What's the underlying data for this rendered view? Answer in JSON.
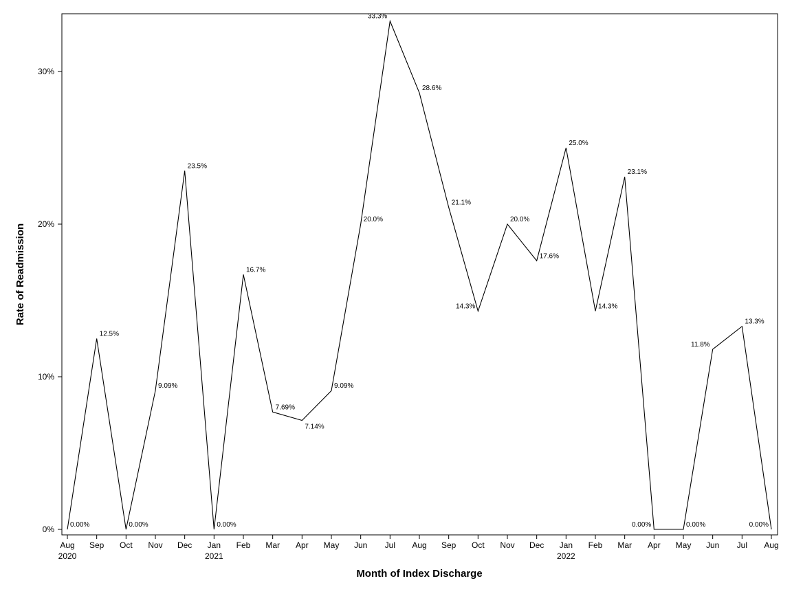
{
  "chart_data": {
    "type": "line",
    "title": "",
    "xlabel": "Month of Index Discharge",
    "ylabel": "Rate of Readmission",
    "ylim": [
      0,
      0.337
    ],
    "yticks": [
      {
        "value": 0,
        "label": "0%"
      },
      {
        "value": 0.1,
        "label": "10%"
      },
      {
        "value": 0.2,
        "label": "20%"
      },
      {
        "value": 0.3,
        "label": "30%"
      }
    ],
    "grid": false,
    "legend": "none",
    "line_color": "#000000",
    "series": [
      {
        "points": [
          {
            "month": "Aug",
            "year": "2020",
            "value": 0.0,
            "label": "0.00%",
            "label_pos": "right"
          },
          {
            "month": "Sep",
            "year": "",
            "value": 0.125,
            "label": "12.5%",
            "label_pos": "right"
          },
          {
            "month": "Oct",
            "year": "",
            "value": 0.0,
            "label": "0.00%",
            "label_pos": "right"
          },
          {
            "month": "Nov",
            "year": "",
            "value": 0.0909,
            "label": "9.09%",
            "label_pos": "right"
          },
          {
            "month": "Dec",
            "year": "",
            "value": 0.235,
            "label": "23.5%",
            "label_pos": "right"
          },
          {
            "month": "Jan",
            "year": "2021",
            "value": 0.0,
            "label": "0.00%",
            "label_pos": "right"
          },
          {
            "month": "Feb",
            "year": "",
            "value": 0.167,
            "label": "16.7%",
            "label_pos": "right"
          },
          {
            "month": "Mar",
            "year": "",
            "value": 0.0769,
            "label": "7.69%",
            "label_pos": "right"
          },
          {
            "month": "Apr",
            "year": "",
            "value": 0.0714,
            "label": "7.14%",
            "label_pos": "below"
          },
          {
            "month": "May",
            "year": "",
            "value": 0.0909,
            "label": "9.09%",
            "label_pos": "right"
          },
          {
            "month": "Jun",
            "year": "",
            "value": 0.2,
            "label": "20.0%",
            "label_pos": "right"
          },
          {
            "month": "Jul",
            "year": "",
            "value": 0.333,
            "label": "33.3%",
            "label_pos": "left"
          },
          {
            "month": "Aug",
            "year": "",
            "value": 0.286,
            "label": "28.6%",
            "label_pos": "right"
          },
          {
            "month": "Sep",
            "year": "",
            "value": 0.211,
            "label": "21.1%",
            "label_pos": "right"
          },
          {
            "month": "Oct",
            "year": "",
            "value": 0.143,
            "label": "14.3%",
            "label_pos": "left"
          },
          {
            "month": "Nov",
            "year": "",
            "value": 0.2,
            "label": "20.0%",
            "label_pos": "right"
          },
          {
            "month": "Dec",
            "year": "",
            "value": 0.176,
            "label": "17.6%",
            "label_pos": "right"
          },
          {
            "month": "Jan",
            "year": "2022",
            "value": 0.25,
            "label": "25.0%",
            "label_pos": "right"
          },
          {
            "month": "Feb",
            "year": "",
            "value": 0.143,
            "label": "14.3%",
            "label_pos": "right"
          },
          {
            "month": "Mar",
            "year": "",
            "value": 0.231,
            "label": "23.1%",
            "label_pos": "right"
          },
          {
            "month": "Apr",
            "year": "",
            "value": 0.0,
            "label": "0.00%",
            "label_pos": "left"
          },
          {
            "month": "May",
            "year": "",
            "value": 0.0,
            "label": "0.00%",
            "label_pos": "right"
          },
          {
            "month": "Jun",
            "year": "",
            "value": 0.118,
            "label": "11.8%",
            "label_pos": "left"
          },
          {
            "month": "Jul",
            "year": "",
            "value": 0.133,
            "label": "13.3%",
            "label_pos": "right"
          },
          {
            "month": "Aug",
            "year": "",
            "value": 0.0,
            "label": "0.00%",
            "label_pos": "left"
          }
        ]
      }
    ]
  }
}
